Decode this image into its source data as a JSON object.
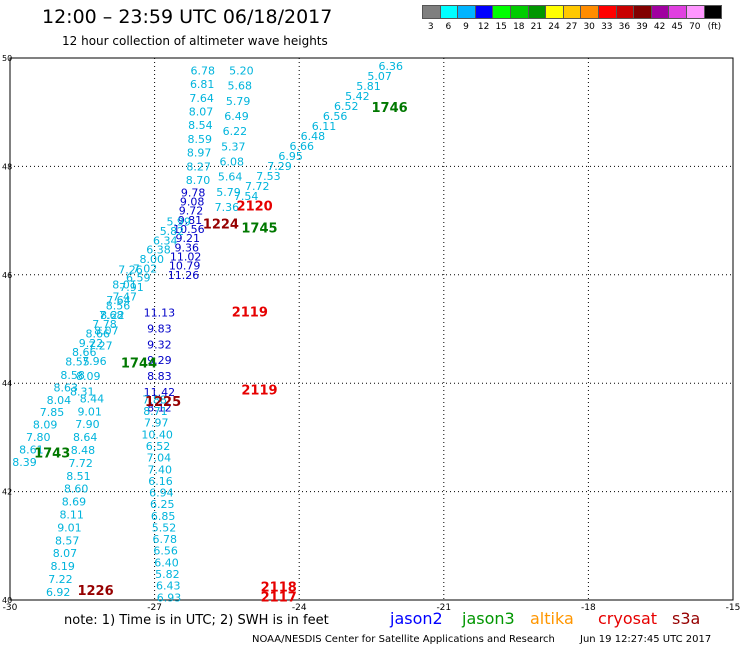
{
  "header": {
    "title": "12:00 – 23:59 UTC 06/18/2017",
    "subtitle": "12 hour collection of altimeter wave heights"
  },
  "legend": {
    "unit": "(ft)",
    "items": [
      {
        "label": "3",
        "color": "#7f7f7f"
      },
      {
        "label": "6",
        "color": "#00ffff"
      },
      {
        "label": "9",
        "color": "#00b4ff"
      },
      {
        "label": "12",
        "color": "#0000ff"
      },
      {
        "label": "15",
        "color": "#00ff00"
      },
      {
        "label": "18",
        "color": "#00cc00"
      },
      {
        "label": "21",
        "color": "#009600"
      },
      {
        "label": "24",
        "color": "#ffff00"
      },
      {
        "label": "27",
        "color": "#ffc800"
      },
      {
        "label": "30",
        "color": "#ff8c00"
      },
      {
        "label": "33",
        "color": "#ff0000"
      },
      {
        "label": "36",
        "color": "#c80000"
      },
      {
        "label": "39",
        "color": "#820000"
      },
      {
        "label": "42",
        "color": "#a000a0"
      },
      {
        "label": "45",
        "color": "#e040e0"
      },
      {
        "label": "70",
        "color": "#ff96ff"
      },
      {
        "label": "",
        "color": "#000000"
      }
    ]
  },
  "map": {
    "lon_range": [
      -30,
      -15
    ],
    "lat_range": [
      40,
      50
    ],
    "x_ticks": [
      "-30",
      "-27",
      "-24",
      "-21",
      "-18",
      "-15"
    ],
    "y_ticks": [
      "50",
      "48",
      "46",
      "44",
      "42",
      "40"
    ],
    "colors": {
      "j2": "#0000c8",
      "cyan": "#00b4dc",
      "j3": "#007800",
      "cryosat": "#e60000",
      "s3a": "#960000"
    },
    "times": [
      {
        "text": "1746",
        "lon": -22.5,
        "lat": 49.1,
        "color": "j3"
      },
      {
        "text": "2120",
        "lon": -25.3,
        "lat": 47.28,
        "color": "cryosat"
      },
      {
        "text": "1224",
        "lon": -26.0,
        "lat": 46.95,
        "color": "s3a"
      },
      {
        "text": "1745",
        "lon": -25.2,
        "lat": 46.87,
        "color": "j3"
      },
      {
        "text": "2119",
        "lon": -25.4,
        "lat": 45.32,
        "color": "cryosat"
      },
      {
        "text": "1744",
        "lon": -27.7,
        "lat": 44.38,
        "color": "j3"
      },
      {
        "text": "2119",
        "lon": -25.2,
        "lat": 43.88,
        "color": "cryosat"
      },
      {
        "text": "1225",
        "lon": -27.2,
        "lat": 43.67,
        "color": "s3a"
      },
      {
        "text": "1743",
        "lon": -29.5,
        "lat": 42.72,
        "color": "j3"
      },
      {
        "text": "2118",
        "lon": -24.8,
        "lat": 40.25,
        "color": "cryosat"
      },
      {
        "text": "1226",
        "lon": -28.6,
        "lat": 40.18,
        "color": "s3a"
      },
      {
        "text": "2117",
        "lon": -24.8,
        "lat": 40.06,
        "color": "cryosat"
      }
    ],
    "tracks": [
      {
        "color": "cyan",
        "start": [
          -22.1,
          49.85
        ],
        "end": [
          -25.1,
          47.45
        ],
        "values": [
          "6.36",
          "5.07",
          "5.81",
          "5.42",
          "6.52",
          "6.56",
          "6.11",
          "6.48",
          "6.66",
          "6.95",
          "7.29",
          "7.53",
          "7.72",
          "7.54"
        ]
      },
      {
        "color": "cyan",
        "start": [
          -25.2,
          49.77
        ],
        "end": [
          -25.5,
          47.25
        ],
        "values": [
          "5.20",
          "5.68",
          "5.79",
          "6.49",
          "6.22",
          "5.37",
          "6.08",
          "5.64",
          "5.79",
          "7.36"
        ]
      },
      {
        "color": "cyan",
        "start": [
          -26.0,
          49.77
        ],
        "end": [
          -26.1,
          47.75
        ],
        "values": [
          "6.78",
          "6.81",
          "7.64",
          "8.07",
          "8.54",
          "8.59",
          "8.97",
          "8.27",
          "8.70"
        ]
      },
      {
        "color": "j2",
        "start": [
          -26.2,
          47.52
        ],
        "end": [
          -26.4,
          46.0
        ],
        "values": [
          "9.78",
          "9.08",
          "9.72",
          "9.81",
          "10.56",
          "9.21",
          "9.36",
          "11.02",
          "10.79",
          "11.26"
        ]
      },
      {
        "color": "j2",
        "start": [
          -26.9,
          45.3
        ],
        "end": [
          -26.9,
          43.55
        ],
        "values": [
          "11.13",
          "9.83",
          "9.32",
          "9.29",
          "8.83",
          "11.42",
          "8.12"
        ]
      },
      {
        "color": "cyan",
        "start": [
          -26.5,
          46.98
        ],
        "end": [
          -28.6,
          44.4
        ],
        "values": [
          "5.99",
          "5.82",
          "6.34",
          "6.38",
          "8.00",
          "7.02",
          "6.59",
          "7.91",
          "7.47",
          "8.56",
          "7.68",
          "7.78",
          "8.66",
          "9.22",
          "8.66",
          "8.55"
        ]
      },
      {
        "color": "cyan",
        "start": [
          -27.5,
          46.1
        ],
        "end": [
          -28.5,
          43.85
        ],
        "values": [
          "7.26",
          "8.01",
          "7.64",
          "8.22",
          "8.07",
          "7.27",
          "7.96",
          "8.09",
          "8.31"
        ]
      },
      {
        "color": "cyan",
        "start": [
          -28.7,
          44.15
        ],
        "end": [
          -29.7,
          42.55
        ],
        "values": [
          "8.58",
          "8.63",
          "8.04",
          "7.85",
          "8.09",
          "7.80",
          "8.61",
          "8.39"
        ]
      },
      {
        "color": "cyan",
        "start": [
          -27.0,
          43.7
        ],
        "end": [
          -26.7,
          40.05
        ],
        "values": [
          "7.88",
          "8.71",
          "7.97",
          "10.40",
          "6.52",
          "7.04",
          "7.40",
          "6.16",
          "6.94",
          "6.25",
          "6.85",
          "5.52",
          "6.78",
          "6.56",
          "6.40",
          "5.82",
          "6.43",
          "6.93"
        ]
      },
      {
        "color": "cyan",
        "start": [
          -28.3,
          43.72
        ],
        "end": [
          -29.0,
          40.15
        ],
        "values": [
          "8.44",
          "9.01",
          "7.90",
          "8.64",
          "8.48",
          "7.72",
          "8.51",
          "8.60",
          "8.69",
          "8.11",
          "9.01",
          "8.57",
          "8.07",
          "8.19",
          "7.22",
          "6.92"
        ]
      }
    ]
  },
  "footer": {
    "note": "note: 1) Time is in UTC; 2) SWH is in feet",
    "satellites": [
      {
        "name": "jason2",
        "color": "#0000ff"
      },
      {
        "name": "jason3",
        "color": "#009600"
      },
      {
        "name": "altika",
        "color": "#ff9600"
      },
      {
        "name": "cryosat",
        "color": "#e60000"
      },
      {
        "name": "s3a",
        "color": "#960000"
      }
    ],
    "credit": "NOAA/NESDIS Center for Satellite Applications and Research",
    "timestamp": "Jun 19 12:27:45 UTC 2017"
  }
}
